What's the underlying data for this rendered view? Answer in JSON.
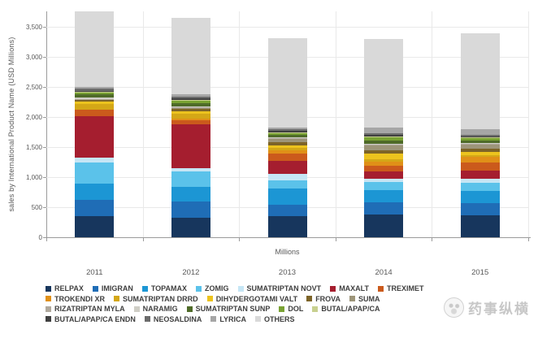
{
  "watermark": {
    "text": "药事纵横"
  },
  "chart_data": {
    "type": "bar",
    "stacked": true,
    "title": "",
    "xlabel": "Millions",
    "ylabel": "sales by International Product Name (USD Millions)",
    "categories": [
      "2011",
      "2012",
      "2013",
      "2014",
      "2015"
    ],
    "ylim": [
      0,
      3750
    ],
    "grid": true,
    "legend_position": "bottom",
    "yticks": [
      {
        "value": 0,
        "label": "0"
      },
      {
        "value": 500,
        "label": "500"
      },
      {
        "value": 1000,
        "label": "1,000"
      },
      {
        "value": 1500,
        "label": "1,500"
      },
      {
        "value": 2000,
        "label": "2,000"
      },
      {
        "value": 2500,
        "label": "2,500"
      },
      {
        "value": 3000,
        "label": "3,000"
      },
      {
        "value": 3500,
        "label": "3,500"
      }
    ],
    "series": [
      {
        "name": "RELPAX",
        "color": "#17365d",
        "values": [
          350,
          320,
          350,
          380,
          365
        ]
      },
      {
        "name": "IMIGRAN",
        "color": "#1f6db6",
        "values": [
          270,
          270,
          190,
          200,
          200
        ]
      },
      {
        "name": "TOPAMAX",
        "color": "#1c96d4",
        "values": [
          270,
          245,
          270,
          200,
          200
        ]
      },
      {
        "name": "ZOMIG",
        "color": "#5bc2ea",
        "values": [
          350,
          255,
          135,
          135,
          135
        ]
      },
      {
        "name": "SUMATRIPTAN NOVT",
        "color": "#c6e6f5",
        "values": [
          80,
          55,
          110,
          55,
          70
        ]
      },
      {
        "name": "MAXALT",
        "color": "#a51e2f",
        "values": [
          690,
          730,
          215,
          120,
          135
        ]
      },
      {
        "name": "TREXIMET",
        "color": "#cb5a1c",
        "values": [
          105,
          70,
          120,
          95,
          140
        ]
      },
      {
        "name": "TROKENDI XR",
        "color": "#e09018",
        "values": [
          0,
          25,
          50,
          65,
          90
        ]
      },
      {
        "name": "SUMATRIPTAN DRRD",
        "color": "#d4a717",
        "values": [
          100,
          80,
          45,
          45,
          30
        ]
      },
      {
        "name": "DIHYDERGOTAMI VALT",
        "color": "#ecc31e",
        "values": [
          35,
          35,
          40,
          90,
          50
        ]
      },
      {
        "name": "FROVA",
        "color": "#7d6428",
        "values": [
          30,
          40,
          55,
          65,
          60
        ]
      },
      {
        "name": "SUMA",
        "color": "#9d9579",
        "values": [
          10,
          15,
          50,
          70,
          60
        ]
      },
      {
        "name": "RIZATRIPTAN MYLA",
        "color": "#b0a99d",
        "values": [
          10,
          15,
          15,
          20,
          15
        ]
      },
      {
        "name": "NARAMIG",
        "color": "#cfcec6",
        "values": [
          25,
          20,
          10,
          10,
          10
        ]
      },
      {
        "name": "SUMATRIPTAN SUNP",
        "color": "#4f6b29",
        "values": [
          45,
          50,
          45,
          60,
          45
        ]
      },
      {
        "name": "DOL",
        "color": "#79a233",
        "values": [
          30,
          40,
          35,
          50,
          35
        ]
      },
      {
        "name": "BUTAL/APAP/CA",
        "color": "#c8d08f",
        "values": [
          10,
          15,
          10,
          15,
          15
        ]
      },
      {
        "name": "BUTAL/APAP/CA ENDN",
        "color": "#404040",
        "values": [
          25,
          25,
          20,
          20,
          20
        ]
      },
      {
        "name": "NEOSALDINA",
        "color": "#6b6b6b",
        "values": [
          30,
          35,
          25,
          35,
          30
        ]
      },
      {
        "name": "LYRICA",
        "color": "#a6a6a6",
        "values": [
          30,
          40,
          30,
          95,
          90
        ]
      },
      {
        "name": "OTHERS",
        "color": "#d9d9d9",
        "values": [
          1250,
          1260,
          1480,
          1465,
          1595
        ]
      }
    ],
    "legend_rows": [
      [
        {
          "label": "RELPAX",
          "series": "RELPAX"
        },
        {
          "label": "IMIGRAN",
          "series": "IMIGRAN"
        },
        {
          "label": "TOPAMAX",
          "series": "TOPAMAX"
        },
        {
          "label": "ZOMIG",
          "series": "ZOMIG"
        },
        {
          "label": "SUMATRIPTAN NOVT",
          "series": "SUMATRIPTAN NOVT"
        },
        {
          "label": "MAXALT",
          "series": "MAXALT"
        },
        {
          "label": "TREXIMET",
          "series": "TREXIMET"
        }
      ],
      [
        {
          "label": "TROKENDI XR",
          "series": "TROKENDI XR"
        },
        {
          "label": "SUMATRIPTAN DRRD",
          "series": "SUMATRIPTAN DRRD"
        },
        {
          "label": "DIHYDERGOTAMI VALT",
          "series": "DIHYDERGOTAMI VALT"
        },
        {
          "label": "FROVA",
          "series": "FROVA"
        },
        {
          "label": "SUMA",
          "series": "SUMA"
        }
      ],
      [
        {
          "label": "RIZATRIPTAN MYLA",
          "series": "RIZATRIPTAN MYLA"
        },
        {
          "label": "NARAMIG",
          "series": "NARAMIG"
        },
        {
          "label": "SUMATRIPTAN SUNP",
          "series": "SUMATRIPTAN SUNP"
        },
        {
          "label": "DOL",
          "series": "DOL"
        },
        {
          "label": "BUTAL/APAP/CA",
          "series": "BUTAL/APAP/CA"
        }
      ],
      [
        {
          "label": "BUTAL/APAP/CA ENDN",
          "series": "BUTAL/APAP/CA ENDN"
        },
        {
          "label": "NEOSALDINA",
          "series": "NEOSALDINA"
        },
        {
          "label": "LYRICA",
          "series": "LYRICA"
        },
        {
          "label": "OTHERS",
          "series": "OTHERS"
        }
      ]
    ]
  }
}
